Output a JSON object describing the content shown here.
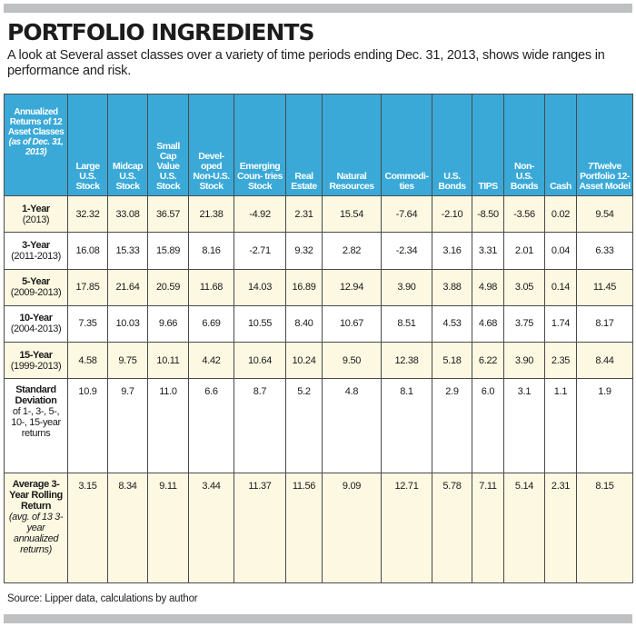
{
  "title": "PORTFOLIO INGREDIENTS",
  "subtitle": "A look at Several asset classes over a variety of time periods ending Dec. 31, 2013, shows wide ranges in performance and risk.",
  "table": {
    "corner_header_main": "Annualized Returns of 12 Asset Classes",
    "corner_header_note": "(as of Dec. 31, 2013)",
    "columns": [
      "Large U.S. Stock",
      "Midcap U.S. Stock",
      "Small Cap Value U.S. Stock",
      "Devel- oped Non-U.S. Stock",
      "Emerging Coun- tries Stock",
      "Real Estate",
      "Natural Resources",
      "Commodi- ties",
      "U.S. Bonds",
      "TIPS",
      "Non- U.S. Bonds",
      "Cash",
      "7Twelve Portfolio 12- Asset Model"
    ],
    "rows": [
      {
        "label": "1-Year",
        "sub": "(2013)",
        "subit": "",
        "values": [
          "32.32",
          "33.08",
          "36.57",
          "21.38",
          "-4.92",
          "2.31",
          "15.54",
          "-7.64",
          "-2.10",
          "-8.50",
          "-3.56",
          "0.02",
          "9.54"
        ]
      },
      {
        "label": "3-Year",
        "sub": "(2011-2013)",
        "subit": "",
        "values": [
          "16.08",
          "15.33",
          "15.89",
          "8.16",
          "-2.71",
          "9.32",
          "2.82",
          "-2.34",
          "3.16",
          "3.31",
          "2.01",
          "0.04",
          "6.33"
        ]
      },
      {
        "label": "5-Year",
        "sub": "(2009-2013)",
        "subit": "",
        "values": [
          "17.85",
          "21.64",
          "20.59",
          "11.68",
          "14.03",
          "16.89",
          "12.94",
          "3.90",
          "3.88",
          "4.98",
          "3.05",
          "0.14",
          "11.45"
        ]
      },
      {
        "label": "10-Year",
        "sub": "(2004-2013)",
        "subit": "",
        "values": [
          "7.35",
          "10.03",
          "9.66",
          "6.69",
          "10.55",
          "8.40",
          "10.67",
          "8.51",
          "4.53",
          "4.68",
          "3.75",
          "1.74",
          "8.17"
        ]
      },
      {
        "label": "15-Year",
        "sub": "(1999-2013)",
        "subit": "",
        "values": [
          "4.58",
          "9.75",
          "10.11",
          "4.42",
          "10.64",
          "10.24",
          "9.50",
          "12.38",
          "5.18",
          "6.22",
          "3.90",
          "2.35",
          "8.44"
        ]
      },
      {
        "label": "Standard Deviation",
        "sub": "of 1-, 3-, 5-, 10-, 15-year returns",
        "subit": "",
        "values": [
          "10.9",
          "9.7",
          "11.0",
          "6.6",
          "8.7",
          "5.2",
          "4.8",
          "8.1",
          "2.9",
          "6.0",
          "3.1",
          "1.1",
          "1.9"
        ]
      },
      {
        "label": "Average 3-Year Rolling Return",
        "sub": "",
        "subit": "(avg. of 13 3-year annualized returns)",
        "values": [
          "3.15",
          "8.34",
          "9.11",
          "3.44",
          "11.37",
          "11.56",
          "9.09",
          "12.71",
          "5.78",
          "7.11",
          "5.14",
          "2.31",
          "8.15"
        ]
      }
    ]
  },
  "source": "Source: Lipper data, calculations by author",
  "colors": {
    "header_bg": "#3aa9d8",
    "shade_bg": "#fcf8e2",
    "bar_gray": "#bfc0c2"
  }
}
